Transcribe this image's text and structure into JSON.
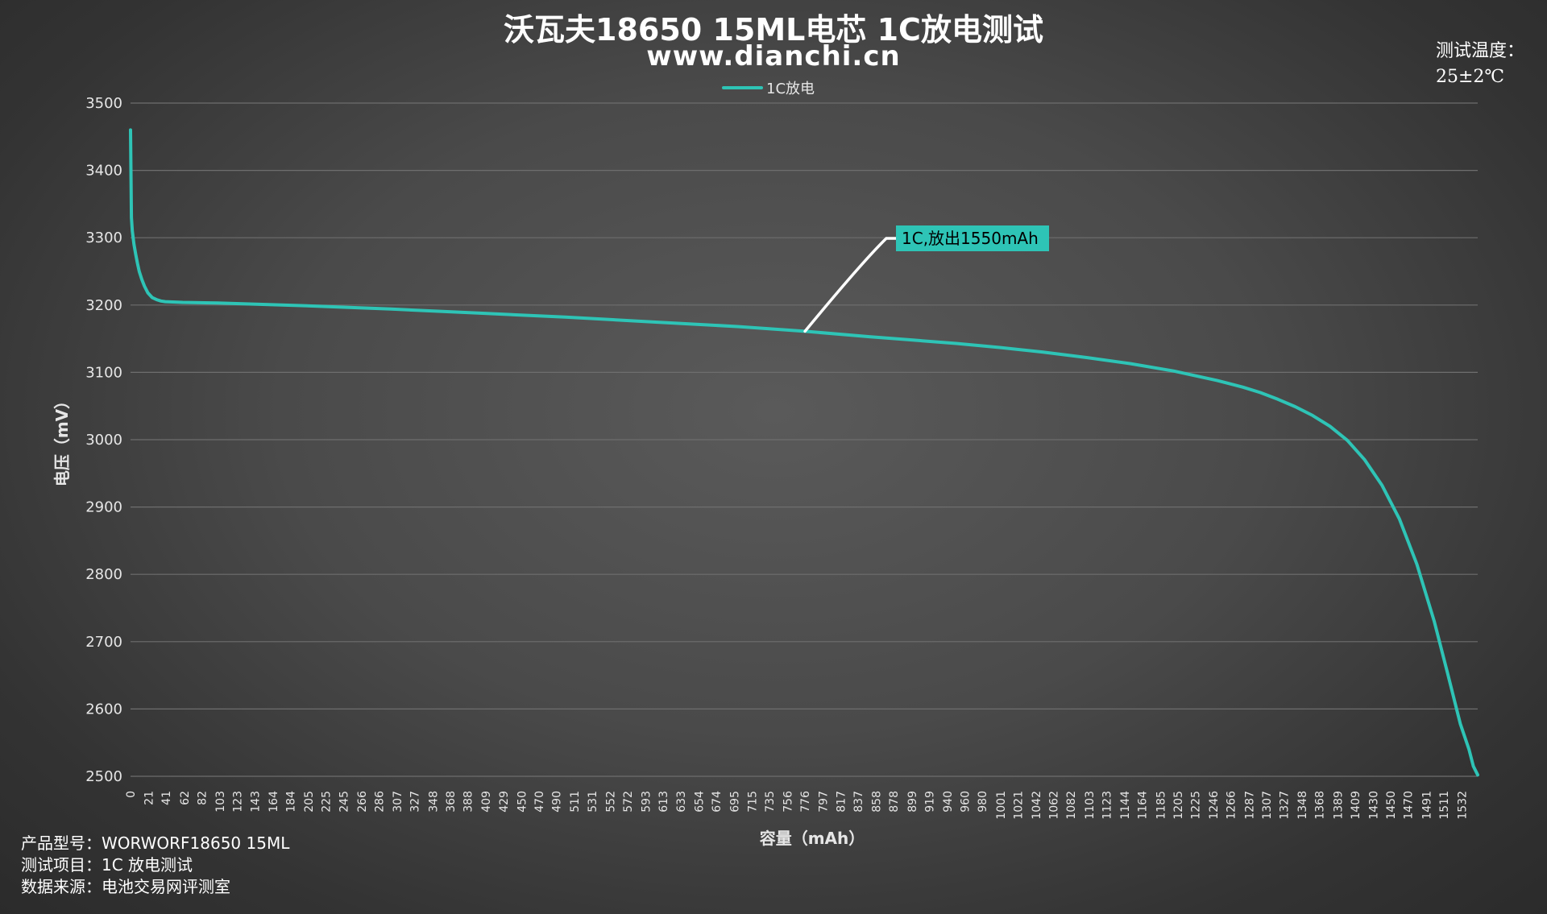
{
  "chart_data": {
    "type": "line",
    "title": "沃瓦夫18650 15ML电芯 1C放电测试",
    "subtitle": "www.dianchi.cn",
    "xlabel": "容量（mAh）",
    "ylabel": "电压（mV）",
    "ylim": [
      2500,
      3500
    ],
    "yticks": [
      2500,
      2600,
      2700,
      2800,
      2900,
      3000,
      3100,
      3200,
      3300,
      3400,
      3500
    ],
    "xlim": [
      0,
      1550
    ],
    "xticks": [
      0,
      21,
      41,
      62,
      82,
      103,
      123,
      143,
      164,
      184,
      205,
      225,
      245,
      266,
      286,
      307,
      327,
      348,
      368,
      388,
      409,
      429,
      450,
      470,
      490,
      511,
      531,
      552,
      572,
      593,
      613,
      633,
      654,
      674,
      695,
      715,
      735,
      756,
      776,
      797,
      817,
      837,
      858,
      878,
      899,
      919,
      940,
      960,
      980,
      1001,
      1021,
      1042,
      1062,
      1082,
      1103,
      1123,
      1144,
      1164,
      1185,
      1205,
      1225,
      1246,
      1266,
      1287,
      1307,
      1327,
      1348,
      1368,
      1389,
      1409,
      1430,
      1450,
      1470,
      1491,
      1511,
      1532
    ],
    "grid": true,
    "legend_position": "top-center",
    "series": [
      {
        "name": "1C放电",
        "color": "#2ec4b6",
        "x": [
          0,
          1,
          2,
          4,
          6,
          8,
          10,
          13,
          16,
          20,
          25,
          30,
          35,
          40,
          60,
          100,
          200,
          300,
          400,
          500,
          600,
          700,
          776,
          850,
          900,
          950,
          1000,
          1050,
          1100,
          1150,
          1200,
          1250,
          1280,
          1300,
          1320,
          1340,
          1360,
          1380,
          1400,
          1420,
          1440,
          1460,
          1480,
          1500,
          1515,
          1530,
          1540,
          1545,
          1550
        ],
        "y": [
          3460,
          3330,
          3310,
          3290,
          3275,
          3262,
          3250,
          3238,
          3228,
          3218,
          3211,
          3208,
          3206,
          3205,
          3204,
          3203,
          3199,
          3194,
          3188,
          3182,
          3175,
          3168,
          3161,
          3153,
          3148,
          3143,
          3137,
          3130,
          3122,
          3113,
          3102,
          3088,
          3078,
          3070,
          3060,
          3049,
          3036,
          3020,
          2999,
          2970,
          2932,
          2882,
          2815,
          2730,
          2655,
          2578,
          2540,
          2515,
          2502
        ]
      }
    ],
    "annotations": [
      {
        "text": "1C,放出1550mAh",
        "x": 776,
        "y": 3161
      }
    ]
  },
  "temperature": {
    "label": "测试温度：",
    "value": "25±2℃"
  },
  "info": {
    "model": "产品型号：WORWORF18650 15ML",
    "test_item": "测试项目：1C 放电测试",
    "source": "数据来源：电池交易网评测室"
  },
  "colors": {
    "line": "#2ec4b6",
    "callout_bg": "#2ec4b6",
    "callout_leader": "#ffffff",
    "grid": "#6e6e6e"
  }
}
